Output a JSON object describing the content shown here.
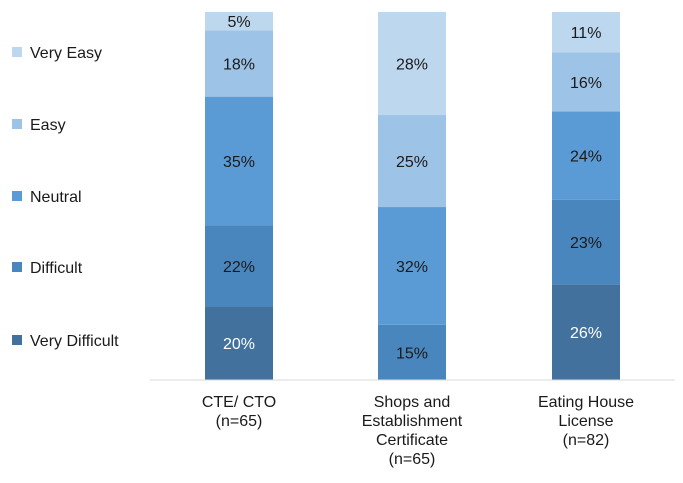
{
  "chart_data": {
    "type": "bar",
    "stacked": true,
    "percent": true,
    "categories": [
      [
        "CTE/ CTO",
        "(n=65)"
      ],
      [
        "Shops and",
        "Establishment",
        "Certificate",
        "(n=65)"
      ],
      [
        "Eating House",
        "License",
        "(n=82)"
      ]
    ],
    "series": [
      {
        "name": "Very Difficult",
        "color": "#41719c",
        "label_color": "#ffffff",
        "values": [
          20,
          0,
          26
        ]
      },
      {
        "name": "Difficult",
        "color": "#4a86be",
        "label_color": "#1a1a1a",
        "values": [
          22,
          15,
          23
        ]
      },
      {
        "name": "Neutral",
        "color": "#5b9bd5",
        "label_color": "#1a1a1a",
        "values": [
          35,
          32,
          24
        ]
      },
      {
        "name": "Easy",
        "color": "#9dc3e6",
        "label_color": "#1a1a1a",
        "values": [
          18,
          25,
          16
        ]
      },
      {
        "name": "Very Easy",
        "color": "#bdd7ee",
        "label_color": "#1a1a1a",
        "values": [
          5,
          28,
          11
        ]
      }
    ],
    "legend_order": [
      "Very Easy",
      "Easy",
      "Neutral",
      "Difficult",
      "Very Difficult"
    ],
    "legend_position": "left",
    "ylim": [
      0,
      100
    ],
    "grid": false
  }
}
